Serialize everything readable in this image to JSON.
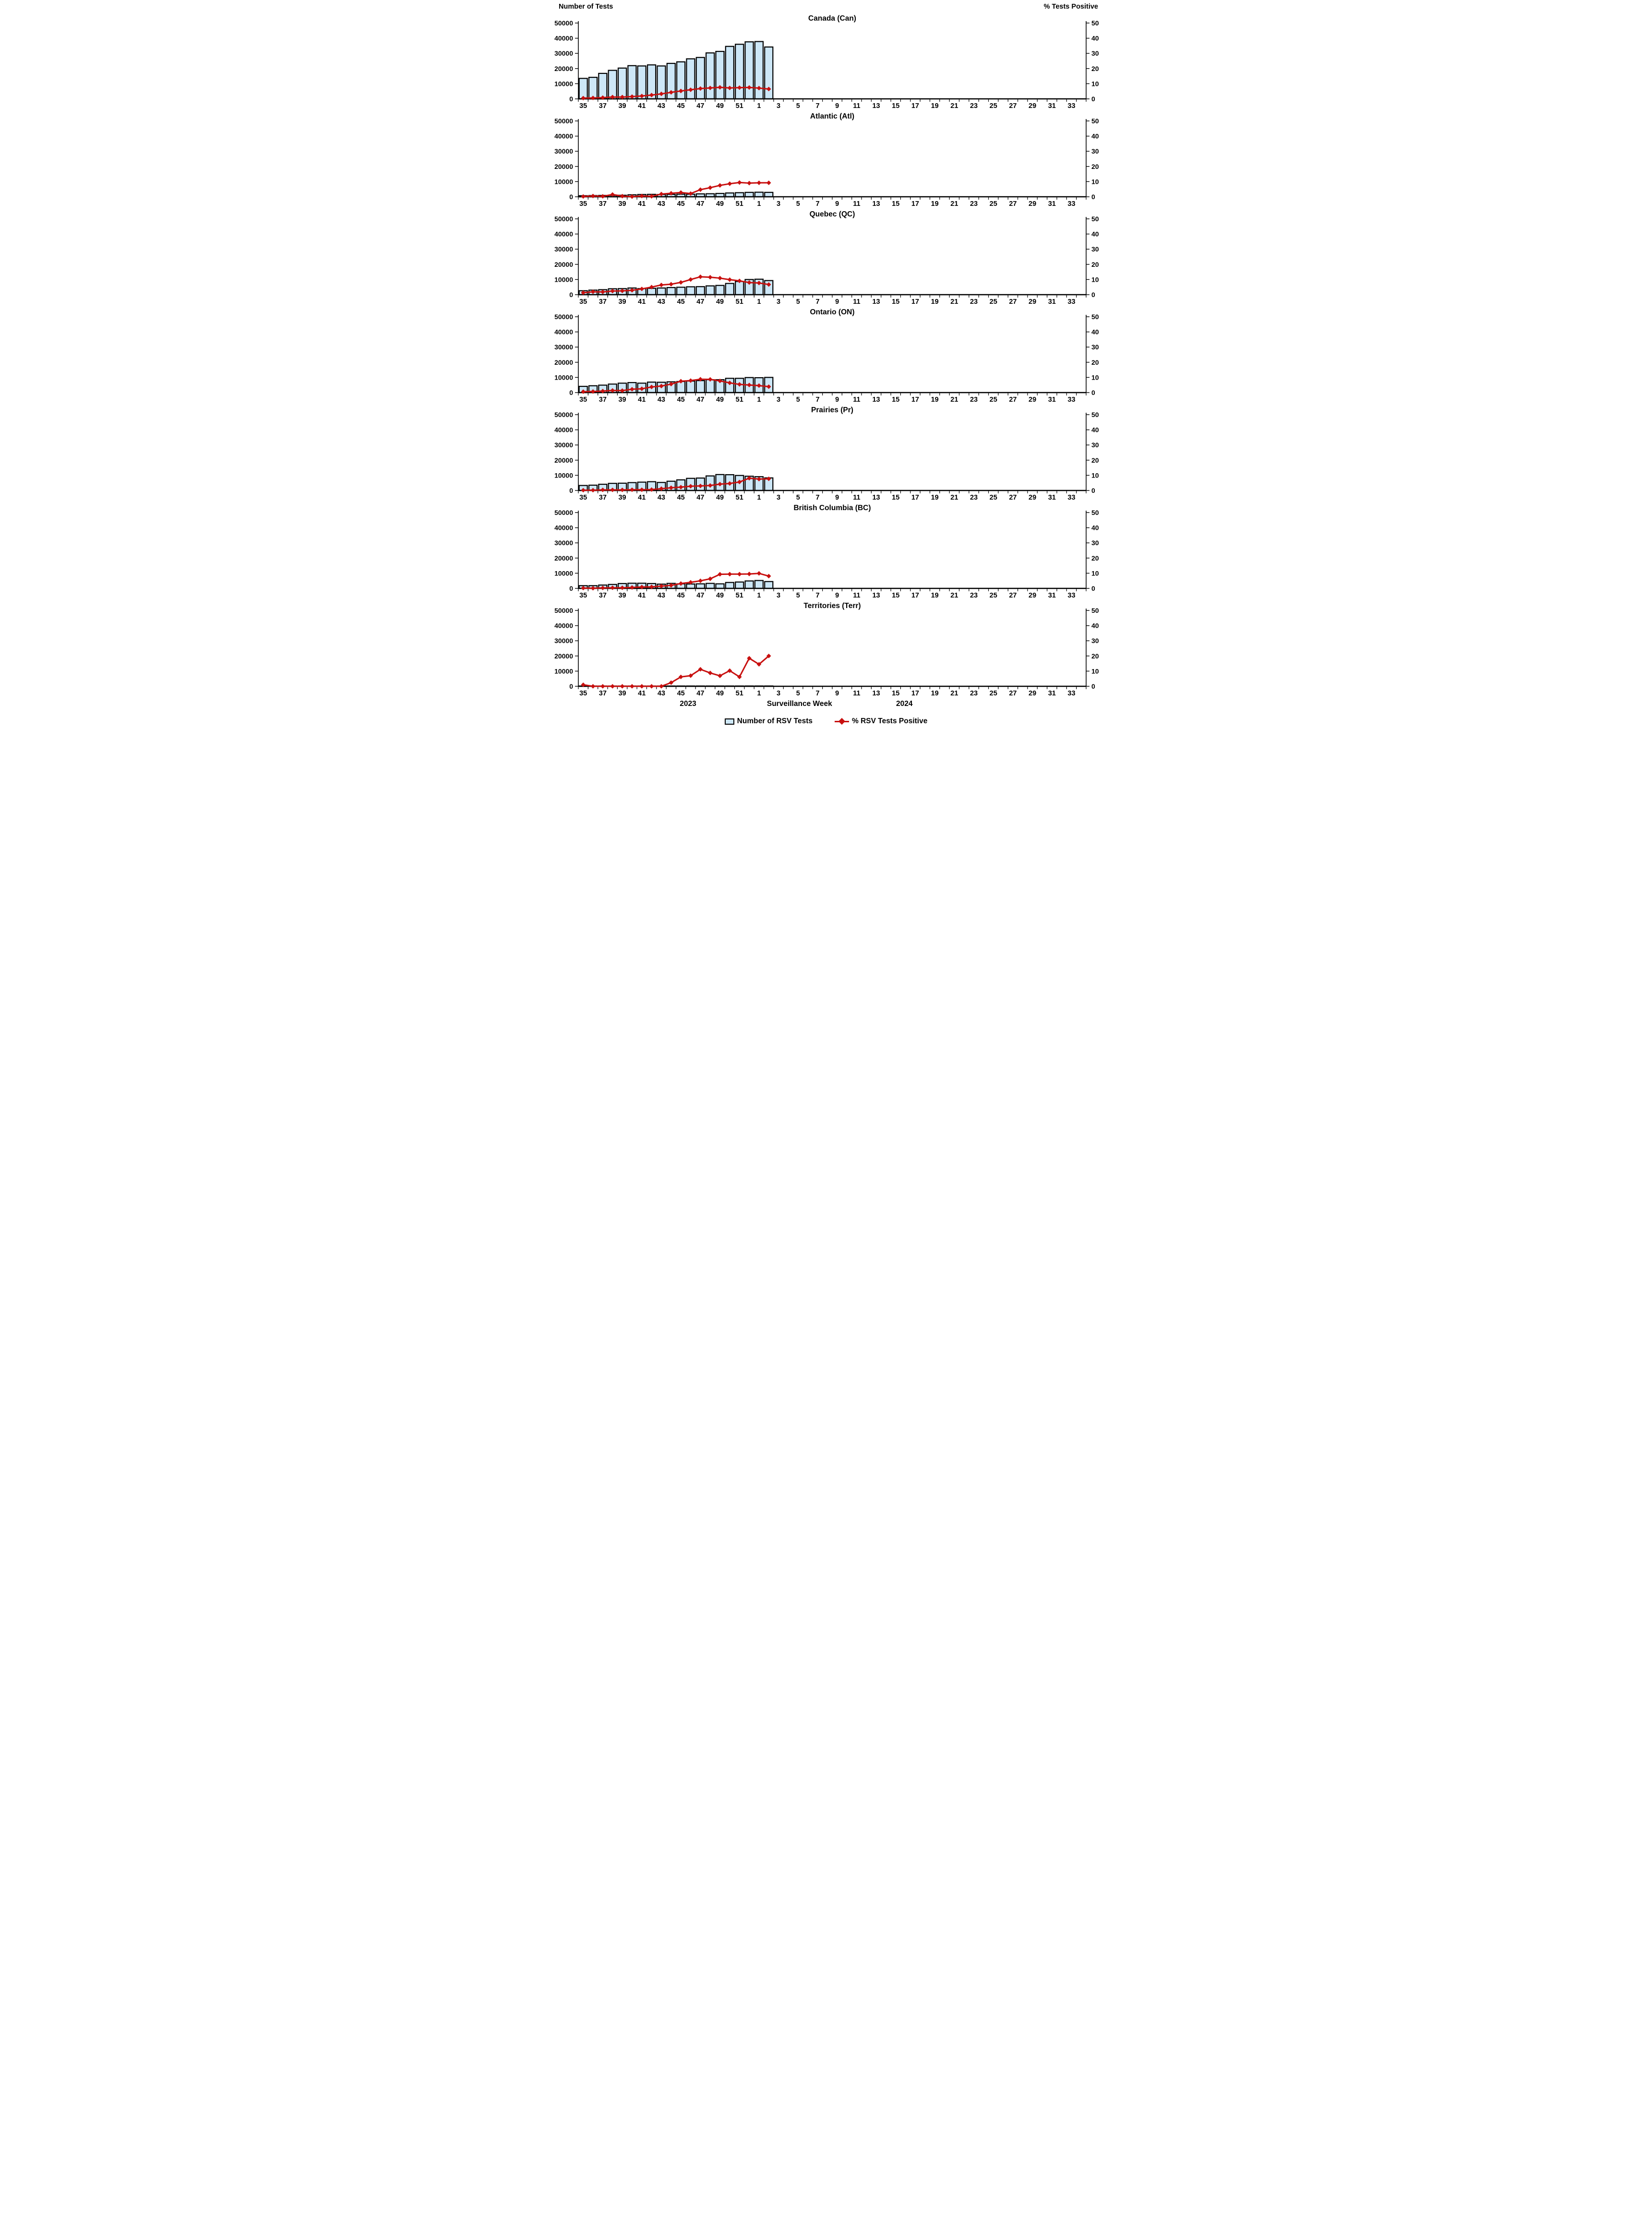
{
  "figure": {
    "left_axis_title": "Number of Tests",
    "right_axis_title": "% Tests Positive",
    "x_axis_title": "Surveillance Week",
    "year_left": "2023",
    "year_right": "2024",
    "legend": {
      "bars_label": "Number of RSV Tests",
      "line_label": "% RSV Tests Positive"
    },
    "colors": {
      "bar_fill": "#CDE7F7",
      "bar_stroke": "#000000",
      "line_color": "#C8100F",
      "axis_color": "#000000"
    }
  },
  "chart_data": [
    {
      "type": "bar+line",
      "title": "Canada (Can)",
      "region": "Canada",
      "x": [
        "35",
        "36",
        "37",
        "38",
        "39",
        "40",
        "41",
        "42",
        "43",
        "44",
        "45",
        "46",
        "47",
        "48",
        "49",
        "50",
        "51",
        "52",
        "1",
        "2"
      ],
      "series": [
        {
          "name": "Number of RSV Tests",
          "axis": "left",
          "values": [
            13500,
            14200,
            16800,
            18800,
            20300,
            21900,
            21700,
            22400,
            21700,
            23400,
            24400,
            26400,
            27300,
            30300,
            31300,
            34600,
            36000,
            37600,
            37800,
            34200
          ]
        },
        {
          "name": "% RSV Tests Positive",
          "axis": "right",
          "values": [
            0.5,
            0.6,
            0.8,
            1.2,
            1.2,
            1.5,
            1.9,
            2.5,
            3.3,
            4.3,
            5.2,
            6.0,
            6.8,
            7.2,
            7.6,
            7.2,
            7.4,
            7.5,
            7.1,
            6.5
          ]
        }
      ]
    },
    {
      "type": "bar+line",
      "title": "Atlantic (Atl)",
      "region": "Atlantic",
      "x": [
        "35",
        "36",
        "37",
        "38",
        "39",
        "40",
        "41",
        "42",
        "43",
        "44",
        "45",
        "46",
        "47",
        "48",
        "49",
        "50",
        "51",
        "52",
        "1",
        "2"
      ],
      "series": [
        {
          "name": "Number of RSV Tests",
          "axis": "left",
          "values": [
            700,
            800,
            900,
            900,
            1000,
            1300,
            1500,
            1600,
            1500,
            1600,
            1700,
            1700,
            1900,
            2000,
            2200,
            2500,
            2700,
            2900,
            3000,
            2900
          ]
        },
        {
          "name": "% RSV Tests Positive",
          "axis": "right",
          "values": [
            0.2,
            0.5,
            0.3,
            1.5,
            0.4,
            0.1,
            0.5,
            0.3,
            1.8,
            2.3,
            2.8,
            2.1,
            4.7,
            6.0,
            7.5,
            8.6,
            9.4,
            9.0,
            9.2,
            9.2
          ]
        }
      ]
    },
    {
      "type": "bar+line",
      "title": "Quebec (QC)",
      "region": "Quebec",
      "x": [
        "35",
        "36",
        "37",
        "38",
        "39",
        "40",
        "41",
        "42",
        "43",
        "44",
        "45",
        "46",
        "47",
        "48",
        "49",
        "50",
        "51",
        "52",
        "1",
        "2"
      ],
      "series": [
        {
          "name": "Number of RSV Tests",
          "axis": "left",
          "values": [
            2600,
            3000,
            3300,
            3900,
            4000,
            4400,
            4000,
            4200,
            4400,
            4700,
            4900,
            5200,
            5300,
            5800,
            6100,
            7400,
            8700,
            10000,
            10200,
            9300
          ]
        },
        {
          "name": "% RSV Tests Positive",
          "axis": "right",
          "values": [
            1.3,
            1.9,
            1.8,
            2.4,
            2.5,
            2.9,
            3.8,
            5.0,
            6.4,
            6.9,
            8.1,
            10.0,
            11.8,
            11.5,
            10.9,
            9.9,
            9.1,
            8.0,
            7.7,
            6.7
          ]
        }
      ]
    },
    {
      "type": "bar+line",
      "title": "Ontario (ON)",
      "region": "Ontario",
      "x": [
        "35",
        "36",
        "37",
        "38",
        "39",
        "40",
        "41",
        "42",
        "43",
        "44",
        "45",
        "46",
        "47",
        "48",
        "49",
        "50",
        "51",
        "52",
        "1",
        "2"
      ],
      "series": [
        {
          "name": "Number of RSV Tests",
          "axis": "left",
          "values": [
            4100,
            4500,
            4900,
            5600,
            6200,
            6600,
            6200,
            6900,
            6800,
            7100,
            7300,
            7600,
            7900,
            8500,
            8500,
            9400,
            9400,
            9900,
            9800,
            10000
          ]
        },
        {
          "name": "% RSV Tests Positive",
          "axis": "right",
          "values": [
            0.6,
            0.7,
            1.0,
            1.4,
            1.3,
            2.2,
            2.5,
            3.7,
            4.3,
            5.6,
            7.5,
            7.9,
            8.8,
            8.7,
            7.7,
            6.4,
            5.4,
            5.0,
            4.6,
            3.9
          ]
        }
      ]
    },
    {
      "type": "bar+line",
      "title": "Prairies (Pr)",
      "region": "Prairies",
      "x": [
        "35",
        "36",
        "37",
        "38",
        "39",
        "40",
        "41",
        "42",
        "43",
        "44",
        "45",
        "46",
        "47",
        "48",
        "49",
        "50",
        "51",
        "52",
        "1",
        "2"
      ],
      "series": [
        {
          "name": "Number of RSV Tests",
          "axis": "left",
          "values": [
            3300,
            3500,
            4100,
            4700,
            4800,
            5200,
            5500,
            5800,
            5300,
            6100,
            7000,
            8000,
            8200,
            9600,
            10500,
            10400,
            9900,
            9400,
            9100,
            8300
          ]
        },
        {
          "name": "% RSV Tests Positive",
          "axis": "right",
          "values": [
            0.2,
            0.2,
            0.4,
            0.4,
            0.4,
            0.5,
            0.5,
            0.6,
            1.2,
            1.8,
            2.2,
            2.8,
            3.0,
            3.3,
            4.2,
            4.6,
            5.6,
            8.1,
            7.5,
            7.7
          ]
        }
      ]
    },
    {
      "type": "bar+line",
      "title": "British Columbia (BC)",
      "region": "British Columbia",
      "x": [
        "35",
        "36",
        "37",
        "38",
        "39",
        "40",
        "41",
        "42",
        "43",
        "44",
        "45",
        "46",
        "47",
        "48",
        "49",
        "50",
        "51",
        "52",
        "1",
        "2"
      ],
      "series": [
        {
          "name": "Number of RSV Tests",
          "axis": "left",
          "values": [
            1800,
            1800,
            2200,
            2600,
            3200,
            3400,
            3400,
            3200,
            2800,
            3300,
            3000,
            2900,
            3000,
            3300,
            3000,
            3900,
            4200,
            4900,
            5200,
            4500
          ]
        },
        {
          "name": "% RSV Tests Positive",
          "axis": "right",
          "values": [
            0.2,
            0.1,
            0.3,
            0.4,
            0.4,
            0.6,
            0.9,
            1.0,
            1.5,
            2.0,
            3.2,
            4.0,
            5.0,
            6.3,
            9.3,
            9.4,
            9.4,
            9.5,
            9.9,
            8.1
          ]
        }
      ]
    },
    {
      "type": "bar+line",
      "title": "Territories (Terr)",
      "region": "Territories",
      "x": [
        "35",
        "36",
        "37",
        "38",
        "39",
        "40",
        "41",
        "42",
        "43",
        "44",
        "45",
        "46",
        "47",
        "48",
        "49",
        "50",
        "51",
        "52",
        "1",
        "2"
      ],
      "series": [
        {
          "name": "Number of RSV Tests",
          "axis": "left",
          "values": [
            100,
            100,
            100,
            100,
            100,
            100,
            100,
            100,
            100,
            100,
            150,
            150,
            150,
            150,
            150,
            150,
            150,
            200,
            200,
            200
          ]
        },
        {
          "name": "% RSV Tests Positive",
          "axis": "right",
          "values": [
            1.0,
            0,
            0,
            0,
            0,
            0,
            0,
            0,
            0,
            2.4,
            6.2,
            7.0,
            11.2,
            8.8,
            6.9,
            10.3,
            6.2,
            18.5,
            14.5,
            20.0
          ]
        }
      ]
    }
  ],
  "axes": {
    "weeks_all": [
      "35",
      "36",
      "37",
      "38",
      "39",
      "40",
      "41",
      "42",
      "43",
      "44",
      "45",
      "46",
      "47",
      "48",
      "49",
      "50",
      "51",
      "52",
      "1",
      "2",
      "3",
      "4",
      "5",
      "6",
      "7",
      "8",
      "9",
      "10",
      "11",
      "12",
      "13",
      "14",
      "15",
      "16",
      "17",
      "18",
      "19",
      "20",
      "21",
      "22",
      "23",
      "24",
      "25",
      "26",
      "27",
      "28",
      "29",
      "30",
      "31",
      "32",
      "33",
      "34"
    ],
    "left_ticks": [
      0,
      10000,
      20000,
      30000,
      40000,
      50000
    ],
    "right_ticks": [
      0,
      10,
      20,
      30,
      40,
      50
    ],
    "left_range": [
      0,
      50000
    ],
    "right_range": [
      0,
      50
    ],
    "label_every_other_start_index": 0
  }
}
